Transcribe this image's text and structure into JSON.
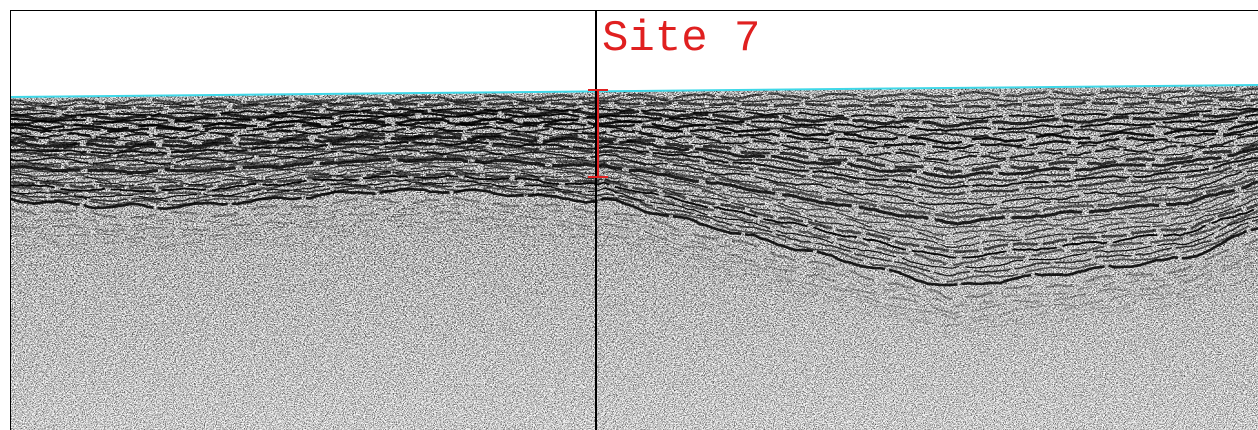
{
  "label": "Site 7"
}
